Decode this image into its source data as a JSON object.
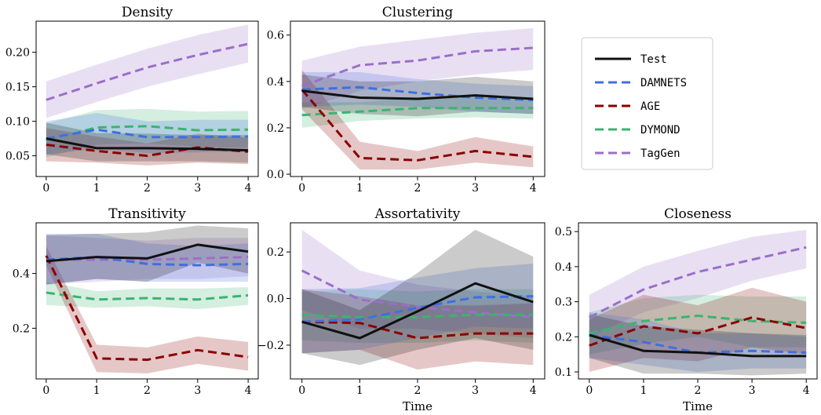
{
  "colors": {
    "Test": "#111111",
    "DAMNETS": "#3f6fe0",
    "AGE": "#8b0000",
    "DYMOND": "#3cb371",
    "TagGen": "#9b6fc9"
  },
  "legend": {
    "placement": "top-right",
    "entries": [
      "Test",
      "DAMNETS",
      "AGE",
      "DYMOND",
      "TagGen"
    ]
  },
  "chart_data": [
    {
      "type": "line",
      "title": "Density",
      "xlabel": "",
      "x": [
        0,
        1,
        2,
        3,
        4
      ],
      "xlim": [
        -0.2,
        4.2
      ],
      "ylim": [
        0.02,
        0.245
      ],
      "yticks": [
        0.05,
        0.1,
        0.15,
        0.2
      ],
      "ytick_labels": [
        "0.05",
        "0.10",
        "0.15",
        "0.20"
      ],
      "series": [
        {
          "name": "TagGen",
          "values": [
            0.131,
            0.155,
            0.178,
            0.196,
            0.212
          ],
          "lower": [
            0.105,
            0.128,
            0.15,
            0.168,
            0.185
          ],
          "upper": [
            0.158,
            0.182,
            0.205,
            0.225,
            0.24
          ]
        },
        {
          "name": "DYMOND",
          "values": [
            0.072,
            0.091,
            0.093,
            0.087,
            0.088
          ],
          "lower": [
            0.048,
            0.066,
            0.068,
            0.063,
            0.062
          ],
          "upper": [
            0.097,
            0.116,
            0.118,
            0.114,
            0.115
          ]
        },
        {
          "name": "AGE",
          "values": [
            0.066,
            0.057,
            0.05,
            0.062,
            0.056
          ],
          "lower": [
            0.042,
            0.04,
            0.036,
            0.04,
            0.038
          ],
          "upper": [
            0.09,
            0.078,
            0.068,
            0.082,
            0.076
          ]
        },
        {
          "name": "DAMNETS",
          "values": [
            0.075,
            0.088,
            0.077,
            0.077,
            0.078
          ],
          "lower": [
            0.052,
            0.06,
            0.054,
            0.055,
            0.056
          ],
          "upper": [
            0.1,
            0.112,
            0.1,
            0.102,
            0.102
          ]
        },
        {
          "name": "Test",
          "values": [
            0.075,
            0.061,
            0.061,
            0.06,
            0.058
          ],
          "lower": [
            0.052,
            0.042,
            0.042,
            0.042,
            0.04
          ],
          "upper": [
            0.098,
            0.083,
            0.082,
            0.08,
            0.08
          ]
        }
      ]
    },
    {
      "type": "line",
      "title": "Clustering",
      "xlabel": "",
      "x": [
        0,
        1,
        2,
        3,
        4
      ],
      "xlim": [
        -0.2,
        4.2
      ],
      "ylim": [
        -0.01,
        0.66
      ],
      "yticks": [
        0.0,
        0.2,
        0.4,
        0.6
      ],
      "ytick_labels": [
        "0.0",
        "0.2",
        "0.4",
        "0.6"
      ],
      "series": [
        {
          "name": "TagGen",
          "values": [
            0.38,
            0.47,
            0.49,
            0.53,
            0.545
          ],
          "lower": [
            0.28,
            0.36,
            0.4,
            0.43,
            0.45
          ],
          "upper": [
            0.49,
            0.55,
            0.58,
            0.61,
            0.63
          ]
        },
        {
          "name": "DYMOND",
          "values": [
            0.255,
            0.27,
            0.285,
            0.285,
            0.285
          ],
          "lower": [
            0.2,
            0.23,
            0.24,
            0.245,
            0.24
          ],
          "upper": [
            0.31,
            0.31,
            0.33,
            0.33,
            0.33
          ]
        },
        {
          "name": "AGE",
          "values": [
            0.365,
            0.07,
            0.06,
            0.1,
            0.075
          ],
          "lower": [
            0.28,
            0.02,
            0.02,
            0.05,
            0.03
          ],
          "upper": [
            0.45,
            0.14,
            0.1,
            0.16,
            0.12
          ]
        },
        {
          "name": "DAMNETS",
          "values": [
            0.365,
            0.375,
            0.35,
            0.33,
            0.32
          ],
          "lower": [
            0.29,
            0.3,
            0.29,
            0.27,
            0.26
          ],
          "upper": [
            0.44,
            0.44,
            0.41,
            0.39,
            0.38
          ]
        },
        {
          "name": "Test",
          "values": [
            0.36,
            0.33,
            0.325,
            0.34,
            0.325
          ],
          "lower": [
            0.29,
            0.26,
            0.25,
            0.27,
            0.26
          ],
          "upper": [
            0.43,
            0.4,
            0.4,
            0.42,
            0.4
          ]
        }
      ]
    },
    {
      "type": "line",
      "title": "Transitivity",
      "xlabel": "",
      "x": [
        0,
        1,
        2,
        3,
        4
      ],
      "xlim": [
        -0.2,
        4.2
      ],
      "ylim": [
        0.015,
        0.585
      ],
      "yticks": [
        0.2,
        0.4
      ],
      "ytick_labels": [
        "0.2",
        "0.4"
      ],
      "series": [
        {
          "name": "DYMOND",
          "values": [
            0.33,
            0.305,
            0.31,
            0.305,
            0.32
          ],
          "lower": [
            0.285,
            0.275,
            0.28,
            0.27,
            0.285
          ],
          "upper": [
            0.37,
            0.335,
            0.345,
            0.345,
            0.35
          ]
        },
        {
          "name": "AGE",
          "values": [
            0.465,
            0.09,
            0.085,
            0.12,
            0.095
          ],
          "lower": [
            0.43,
            0.04,
            0.035,
            0.07,
            0.045
          ],
          "upper": [
            0.5,
            0.14,
            0.13,
            0.17,
            0.15
          ]
        },
        {
          "name": "TagGen",
          "values": [
            0.45,
            0.45,
            0.45,
            0.455,
            0.46
          ],
          "lower": [
            0.36,
            0.37,
            0.38,
            0.38,
            0.39
          ],
          "upper": [
            0.54,
            0.53,
            0.52,
            0.53,
            0.53
          ]
        },
        {
          "name": "DAMNETS",
          "values": [
            0.45,
            0.46,
            0.435,
            0.43,
            0.435
          ],
          "lower": [
            0.36,
            0.38,
            0.37,
            0.37,
            0.37
          ],
          "upper": [
            0.545,
            0.545,
            0.51,
            0.5,
            0.51
          ]
        },
        {
          "name": "Test",
          "values": [
            0.445,
            0.46,
            0.455,
            0.505,
            0.48
          ],
          "lower": [
            0.36,
            0.38,
            0.37,
            0.44,
            0.4
          ],
          "upper": [
            0.54,
            0.545,
            0.55,
            0.575,
            0.565
          ]
        }
      ]
    },
    {
      "type": "line",
      "title": "Assortativity",
      "xlabel": "Time",
      "x": [
        0,
        1,
        2,
        3,
        4
      ],
      "xlim": [
        -0.2,
        4.2
      ],
      "ylim": [
        -0.345,
        0.325
      ],
      "yticks": [
        -0.2,
        0.0,
        0.2
      ],
      "ytick_labels": [
        "−0.2",
        "0.0",
        "0.2"
      ],
      "series": [
        {
          "name": "TagGen",
          "values": [
            0.12,
            -0.005,
            -0.035,
            -0.06,
            -0.08
          ],
          "lower": [
            -0.05,
            -0.13,
            -0.13,
            -0.15,
            -0.17
          ],
          "upper": [
            0.295,
            0.12,
            0.06,
            0.03,
            0.01
          ]
        },
        {
          "name": "DYMOND",
          "values": [
            -0.07,
            -0.08,
            -0.08,
            -0.07,
            -0.07
          ],
          "lower": [
            -0.18,
            -0.19,
            -0.19,
            -0.18,
            -0.19
          ],
          "upper": [
            0.03,
            0.04,
            0.03,
            0.04,
            0.04
          ]
        },
        {
          "name": "AGE",
          "values": [
            -0.1,
            -0.105,
            -0.17,
            -0.15,
            -0.15
          ],
          "lower": [
            -0.235,
            -0.22,
            -0.305,
            -0.27,
            -0.285
          ],
          "upper": [
            0.04,
            0.01,
            -0.03,
            -0.03,
            -0.02
          ]
        },
        {
          "name": "DAMNETS",
          "values": [
            -0.1,
            -0.09,
            -0.04,
            0.005,
            0.01
          ],
          "lower": [
            -0.235,
            -0.22,
            -0.17,
            -0.12,
            -0.13
          ],
          "upper": [
            0.04,
            0.045,
            0.09,
            0.13,
            0.15
          ]
        },
        {
          "name": "Test",
          "values": [
            -0.1,
            -0.17,
            -0.055,
            0.065,
            -0.015
          ],
          "lower": [
            -0.235,
            -0.285,
            -0.22,
            -0.17,
            -0.22
          ],
          "upper": [
            0.04,
            -0.05,
            0.11,
            0.295,
            0.18
          ]
        }
      ]
    },
    {
      "type": "line",
      "title": "Closeness",
      "xlabel": "Time",
      "x": [
        0,
        1,
        2,
        3,
        4
      ],
      "xlim": [
        -0.2,
        4.2
      ],
      "ylim": [
        0.08,
        0.525
      ],
      "yticks": [
        0.1,
        0.2,
        0.3,
        0.4,
        0.5
      ],
      "ytick_labels": [
        "0.1",
        "0.2",
        "0.3",
        "0.4",
        "0.5"
      ],
      "series": [
        {
          "name": "TagGen",
          "values": [
            0.255,
            0.335,
            0.385,
            0.42,
            0.455
          ],
          "lower": [
            0.2,
            0.27,
            0.31,
            0.36,
            0.395
          ],
          "upper": [
            0.32,
            0.4,
            0.445,
            0.485,
            0.505
          ]
        },
        {
          "name": "DYMOND",
          "values": [
            0.21,
            0.245,
            0.26,
            0.245,
            0.24
          ],
          "lower": [
            0.15,
            0.18,
            0.2,
            0.17,
            0.17
          ],
          "upper": [
            0.27,
            0.31,
            0.32,
            0.315,
            0.315
          ]
        },
        {
          "name": "AGE",
          "values": [
            0.175,
            0.23,
            0.21,
            0.255,
            0.225
          ],
          "lower": [
            0.1,
            0.14,
            0.13,
            0.17,
            0.15
          ],
          "upper": [
            0.25,
            0.32,
            0.29,
            0.34,
            0.3
          ]
        },
        {
          "name": "DAMNETS",
          "values": [
            0.205,
            0.185,
            0.155,
            0.16,
            0.155
          ],
          "lower": [
            0.14,
            0.12,
            0.1,
            0.11,
            0.11
          ],
          "upper": [
            0.27,
            0.25,
            0.21,
            0.21,
            0.2
          ]
        },
        {
          "name": "Test",
          "values": [
            0.205,
            0.16,
            0.155,
            0.145,
            0.145
          ],
          "lower": [
            0.14,
            0.095,
            0.095,
            0.09,
            0.095
          ],
          "upper": [
            0.265,
            0.23,
            0.22,
            0.21,
            0.205
          ]
        }
      ]
    }
  ]
}
